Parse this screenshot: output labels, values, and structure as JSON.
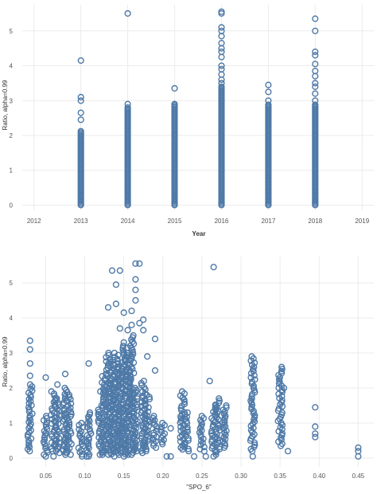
{
  "colors": {
    "marker": "#4e79a7",
    "grid": "#ebebeb",
    "axis_text": "#555555"
  },
  "chart_data": [
    {
      "type": "scatter",
      "title": "",
      "xlabel": "Year",
      "ylabel": "Ratio, alpha=0.99",
      "xlim": [
        2011.75,
        2019.25
      ],
      "ylim": [
        -0.15,
        5.75
      ],
      "x_ticks": [
        "2012",
        "2013",
        "2014",
        "2015",
        "2016",
        "2017",
        "2018",
        "2019"
      ],
      "y_ticks": [
        "0",
        "1",
        "2",
        "3",
        "4",
        "5"
      ],
      "grid": true,
      "series": [
        {
          "x_values": [
            2013,
            2014,
            2015,
            2016,
            2017,
            2018
          ],
          "dense_range": [
            [
              0.0,
              2.15
            ],
            [
              0.0,
              2.8
            ],
            [
              0.0,
              2.9
            ],
            [
              0.0,
              3.4
            ],
            [
              0.0,
              2.9
            ],
            [
              0.0,
              2.9
            ]
          ],
          "points": [
            [
              2013,
              3.1
            ],
            [
              2013,
              3.0
            ],
            [
              2013,
              2.65
            ],
            [
              2013,
              2.45
            ],
            [
              2013,
              4.15
            ],
            [
              2014,
              2.9
            ],
            [
              2014,
              5.5
            ],
            [
              2015,
              2.9
            ],
            [
              2015,
              3.35
            ],
            [
              2016,
              3.5
            ],
            [
              2016,
              3.6
            ],
            [
              2016,
              3.75
            ],
            [
              2016,
              3.9
            ],
            [
              2016,
              4.0
            ],
            [
              2016,
              4.25
            ],
            [
              2016,
              4.4
            ],
            [
              2016,
              4.5
            ],
            [
              2016,
              4.65
            ],
            [
              2016,
              4.85
            ],
            [
              2016,
              5.0
            ],
            [
              2016,
              5.1
            ],
            [
              2016,
              5.5
            ],
            [
              2016,
              5.55
            ],
            [
              2017,
              3.0
            ],
            [
              2017,
              3.25
            ],
            [
              2017,
              3.45
            ],
            [
              2018,
              3.0
            ],
            [
              2018,
              3.2
            ],
            [
              2018,
              3.4
            ],
            [
              2018,
              3.5
            ],
            [
              2018,
              3.7
            ],
            [
              2018,
              3.85
            ],
            [
              2018,
              4.05
            ],
            [
              2018,
              4.3
            ],
            [
              2018,
              4.4
            ],
            [
              2018,
              5.0
            ],
            [
              2018,
              5.35
            ]
          ]
        }
      ]
    },
    {
      "type": "scatter",
      "title": "",
      "xlabel": "\"SPO_6\"",
      "ylabel": "Ratio, alpha=0.99",
      "xlim": [
        0.02,
        0.47
      ],
      "ylim": [
        -0.25,
        5.75
      ],
      "x_ticks": [
        "0.05",
        "0.10",
        "0.15",
        "0.20",
        "0.25",
        "0.30",
        "0.35",
        "0.40",
        "0.45"
      ],
      "y_ticks": [
        "0",
        "1",
        "2",
        "3",
        "4",
        "5"
      ],
      "grid": true,
      "columns": [
        {
          "x": 0.03,
          "ymin": 0.2,
          "ymax": 2.1
        },
        {
          "x": 0.05,
          "ymin": 0.1,
          "ymax": 1.2
        },
        {
          "x": 0.06,
          "ymin": 0.2,
          "ymax": 1.9
        },
        {
          "x": 0.065,
          "ymin": 0.15,
          "ymax": 1.7
        },
        {
          "x": 0.075,
          "ymin": 0.1,
          "ymax": 2.0
        },
        {
          "x": 0.08,
          "ymin": 0.1,
          "ymax": 1.8
        },
        {
          "x": 0.095,
          "ymin": 0.05,
          "ymax": 1.0
        },
        {
          "x": 0.105,
          "ymin": 0.05,
          "ymax": 1.3
        },
        {
          "x": 0.12,
          "ymin": 0.1,
          "ymax": 1.5
        },
        {
          "x": 0.125,
          "ymin": 0.1,
          "ymax": 2.4
        },
        {
          "x": 0.13,
          "ymin": 0.1,
          "ymax": 3.0
        },
        {
          "x": 0.135,
          "ymin": 0.05,
          "ymax": 2.8
        },
        {
          "x": 0.14,
          "ymin": 0.15,
          "ymax": 3.0
        },
        {
          "x": 0.145,
          "ymin": 0.1,
          "ymax": 2.6
        },
        {
          "x": 0.15,
          "ymin": 0.05,
          "ymax": 3.2
        },
        {
          "x": 0.155,
          "ymin": 0.1,
          "ymax": 3.0
        },
        {
          "x": 0.16,
          "ymin": 0.1,
          "ymax": 3.5
        },
        {
          "x": 0.165,
          "ymin": 0.2,
          "ymax": 2.0
        },
        {
          "x": 0.175,
          "ymin": 0.15,
          "ymax": 2.2
        },
        {
          "x": 0.18,
          "ymin": 0.2,
          "ymax": 1.8
        },
        {
          "x": 0.19,
          "ymin": 0.3,
          "ymax": 1.2
        },
        {
          "x": 0.2,
          "ymin": 0.4,
          "ymax": 1.0
        },
        {
          "x": 0.225,
          "ymin": 0.3,
          "ymax": 1.9
        },
        {
          "x": 0.23,
          "ymin": 0.2,
          "ymax": 1.3
        },
        {
          "x": 0.25,
          "ymin": 0.2,
          "ymax": 1.2
        },
        {
          "x": 0.265,
          "ymin": 0.1,
          "ymax": 1.5
        },
        {
          "x": 0.27,
          "ymin": 0.2,
          "ymax": 1.7
        },
        {
          "x": 0.28,
          "ymin": 0.3,
          "ymax": 1.5
        },
        {
          "x": 0.315,
          "ymin": 0.2,
          "ymax": 2.9
        },
        {
          "x": 0.35,
          "ymin": 0.35,
          "ymax": 2.6
        }
      ],
      "points": [
        [
          0.03,
          2.7
        ],
        [
          0.03,
          3.1
        ],
        [
          0.03,
          3.35
        ],
        [
          0.03,
          2.35
        ],
        [
          0.05,
          2.3
        ],
        [
          0.05,
          0.05
        ],
        [
          0.06,
          0.05
        ],
        [
          0.065,
          2.1
        ],
        [
          0.075,
          2.4
        ],
        [
          0.105,
          2.7
        ],
        [
          0.105,
          0.05
        ],
        [
          0.12,
          1.9
        ],
        [
          0.13,
          4.3
        ],
        [
          0.135,
          5.35
        ],
        [
          0.14,
          4.4
        ],
        [
          0.14,
          4.95
        ],
        [
          0.145,
          5.35
        ],
        [
          0.145,
          3.7
        ],
        [
          0.15,
          3.3
        ],
        [
          0.15,
          4.15
        ],
        [
          0.155,
          3.65
        ],
        [
          0.155,
          3.15
        ],
        [
          0.16,
          3.8
        ],
        [
          0.16,
          4.2
        ],
        [
          0.165,
          4.5
        ],
        [
          0.165,
          5.55
        ],
        [
          0.165,
          4.8
        ],
        [
          0.165,
          5.1
        ],
        [
          0.17,
          3.85
        ],
        [
          0.17,
          5.55
        ],
        [
          0.175,
          3.65
        ],
        [
          0.175,
          3.95
        ],
        [
          0.18,
          2.9
        ],
        [
          0.19,
          3.4
        ],
        [
          0.19,
          2.5
        ],
        [
          0.205,
          0.05
        ],
        [
          0.21,
          0.85
        ],
        [
          0.21,
          0.05
        ],
        [
          0.225,
          0.25
        ],
        [
          0.24,
          0.05
        ],
        [
          0.255,
          0.05
        ],
        [
          0.26,
          2.2
        ],
        [
          0.265,
          5.45
        ],
        [
          0.265,
          0.05
        ],
        [
          0.315,
          0.05
        ],
        [
          0.355,
          2.0
        ],
        [
          0.36,
          0.2
        ],
        [
          0.395,
          1.45
        ],
        [
          0.395,
          0.9
        ],
        [
          0.395,
          0.7
        ],
        [
          0.395,
          0.6
        ],
        [
          0.45,
          0.3
        ],
        [
          0.45,
          0.2
        ],
        [
          0.45,
          0.05
        ]
      ]
    }
  ]
}
